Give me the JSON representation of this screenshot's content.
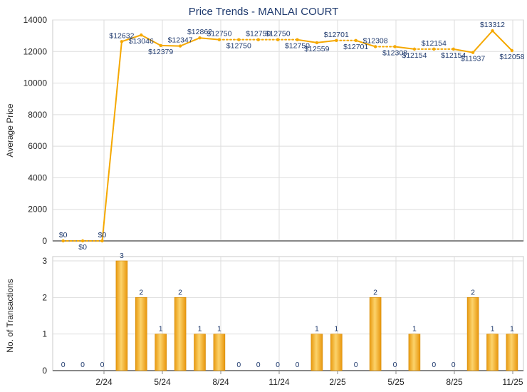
{
  "chart_data": [
    {
      "type": "line",
      "title": "Price Trends - MANLAI COURT",
      "ylabel": "Average Price",
      "ylim": [
        0,
        14000
      ],
      "yticks": [
        0,
        2000,
        4000,
        6000,
        8000,
        10000,
        12000,
        14000
      ],
      "grid": true,
      "line_color": "#f5a800",
      "series": [
        {
          "values": [
            0,
            0,
            0,
            12632,
            13046,
            12379,
            12347,
            12862,
            12750,
            12750,
            12750,
            12750,
            12750,
            12559,
            12701,
            12701,
            12308,
            12308,
            12154,
            12154,
            12154,
            11937,
            13312,
            12058
          ],
          "point_labels": [
            "$0",
            "$0",
            "$0",
            "$12632",
            "$13046",
            "$12379",
            "$12347",
            "$12862",
            "$12750",
            "$12750",
            "$12750",
            "$12750",
            "$12750",
            "$12559",
            "$12701",
            "$12701",
            "$12308",
            "$12308",
            "$12154",
            "$12154",
            "$12154",
            "$11937",
            "$13312",
            "$12058"
          ],
          "label_position": [
            "above",
            "below",
            "above",
            "above",
            "below",
            "below",
            "above",
            "above",
            "above",
            "below",
            "above",
            "above",
            "below",
            "below",
            "above",
            "below",
            "above",
            "below",
            "below",
            "above",
            "below",
            "below",
            "above",
            "below"
          ]
        }
      ]
    },
    {
      "type": "bar",
      "ylabel": "No. of Transactions",
      "ylim": [
        0,
        3
      ],
      "yticks": [
        0,
        1,
        2,
        3
      ],
      "grid": true,
      "bar_color": "#f0a818",
      "values": [
        0,
        0,
        0,
        3,
        2,
        1,
        2,
        1,
        1,
        0,
        0,
        0,
        0,
        1,
        1,
        0,
        2,
        0,
        1,
        0,
        0,
        2,
        1,
        1
      ],
      "x_ticks": [
        "2/24",
        "5/24",
        "8/24",
        "11/24",
        "2/25",
        "5/25",
        "8/25",
        "11/25"
      ]
    }
  ]
}
